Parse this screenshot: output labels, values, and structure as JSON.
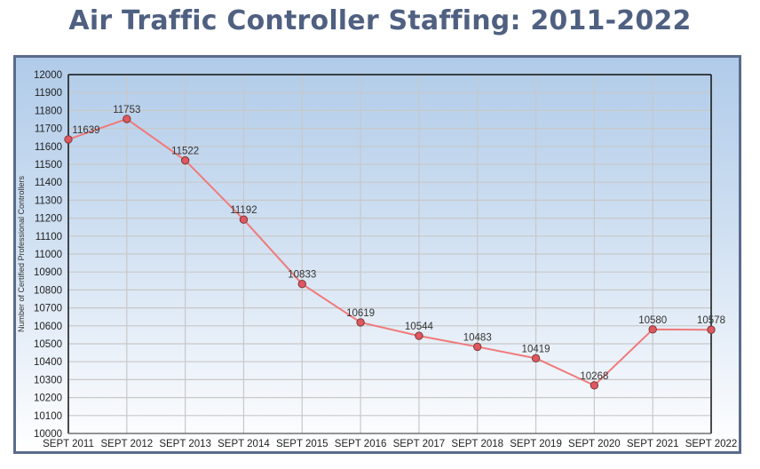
{
  "chart_data": {
    "type": "line",
    "title": "Air Traffic Controller Staffing: 2011-2022",
    "xlabel": "",
    "ylabel": "Number of Certified Professional Controllers",
    "categories": [
      "SEPT 2011",
      "SEPT 2012",
      "SEPT 2013",
      "SEPT 2014",
      "SEPT 2015",
      "SEPT 2016",
      "SEPT 2017",
      "SEPT 2018",
      "SEPT 2019",
      "SEPT 2020",
      "SEPT 2021",
      "SEPT 2022"
    ],
    "series": [
      {
        "name": "Certified Professional Controllers",
        "values": [
          11639,
          11753,
          11522,
          11192,
          10833,
          10619,
          10544,
          10483,
          10419,
          10268,
          10580,
          10578
        ]
      }
    ],
    "data_labels": [
      "11639",
      "11753",
      "11522",
      "11192",
      "10833",
      "10619",
      "10544",
      "10483",
      "10419",
      "10268",
      "10580",
      "10578"
    ],
    "ylim": [
      10000,
      12000
    ],
    "ytick_step": 100,
    "yticks": [
      "10000",
      "10100",
      "10200",
      "10300",
      "10400",
      "10500",
      "10600",
      "10700",
      "10800",
      "10900",
      "11000",
      "11100",
      "11200",
      "11300",
      "11400",
      "11500",
      "11600",
      "11700",
      "11800",
      "11900",
      "12000"
    ],
    "grid": true,
    "legend": "none",
    "colors": {
      "line": "#f07a7a",
      "marker": "#e0575f",
      "marker_edge": "#7a3a3a",
      "title": "#4f6081",
      "frame_border": "#5a6b8c",
      "grid": "#c8c8c8"
    }
  }
}
